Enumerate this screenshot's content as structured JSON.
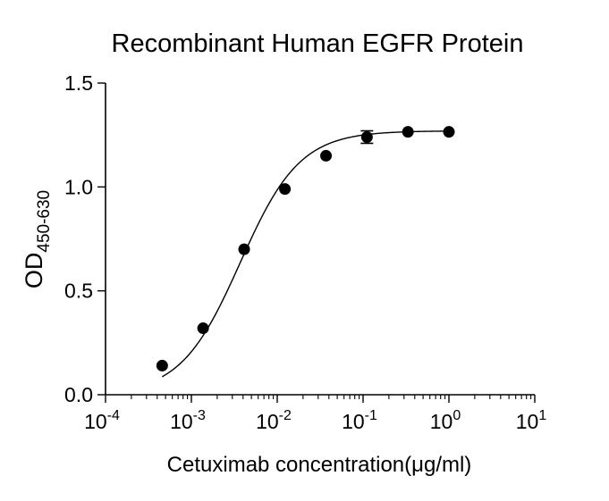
{
  "chart_data": {
    "type": "scatter",
    "title": "Recombinant Human EGFR Protein",
    "xlabel": "Cetuximab concentration(μg/ml)",
    "ylabel": {
      "main": "OD",
      "subscript": "450-630"
    },
    "x_scale": "log",
    "xlim": [
      0.0001,
      10
    ],
    "ylim": [
      0,
      1.5
    ],
    "x_ticks": [
      {
        "value": 0.0001,
        "base": "10",
        "exp": "-4"
      },
      {
        "value": 0.001,
        "base": "10",
        "exp": "-3"
      },
      {
        "value": 0.01,
        "base": "10",
        "exp": "-2"
      },
      {
        "value": 0.1,
        "base": "10",
        "exp": "-1"
      },
      {
        "value": 1,
        "base": "10",
        "exp": "0"
      },
      {
        "value": 10,
        "base": "10",
        "exp": "1"
      }
    ],
    "y_ticks": [
      {
        "value": 0.0,
        "label": "0.0"
      },
      {
        "value": 0.5,
        "label": "0.5"
      },
      {
        "value": 1.0,
        "label": "1.0"
      },
      {
        "value": 1.5,
        "label": "1.5"
      }
    ],
    "grid": false,
    "legend": "none",
    "points": [
      {
        "x": 0.000457,
        "y": 0.14
      },
      {
        "x": 0.00137,
        "y": 0.32
      },
      {
        "x": 0.00412,
        "y": 0.7
      },
      {
        "x": 0.0123,
        "y": 0.99
      },
      {
        "x": 0.037,
        "y": 1.15
      },
      {
        "x": 0.111,
        "y": 1.24,
        "err": 0.03
      },
      {
        "x": 0.333,
        "y": 1.265
      },
      {
        "x": 1.0,
        "y": 1.265
      }
    ],
    "fit_curve": {
      "model": "4PL",
      "bottom": 0.0,
      "top": 1.27,
      "ec50": 0.0037,
      "hill": 1.25
    }
  }
}
